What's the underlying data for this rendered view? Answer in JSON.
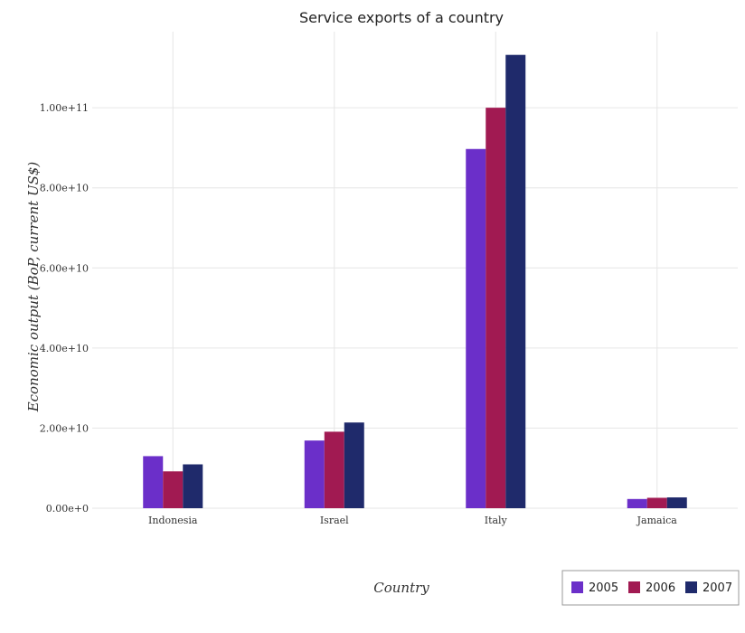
{
  "chart_data": {
    "type": "bar",
    "title": "Service exports of a country",
    "xlabel": "Country",
    "ylabel": "Economic output (BoP, current US$)",
    "categories": [
      "Indonesia",
      "Israel",
      "Italy",
      "Jamaica"
    ],
    "series": [
      {
        "name": "2005",
        "color": "#6b2fc9",
        "values": [
          13000000000.0,
          16900000000.0,
          89700000000.0,
          2300000000.0
        ]
      },
      {
        "name": "2006",
        "color": "#a11a52",
        "values": [
          9200000000.0,
          19100000000.0,
          100000000000.0,
          2600000000.0
        ]
      },
      {
        "name": "2007",
        "color": "#1f2a6b",
        "values": [
          10950000000.0,
          21400000000.0,
          113200000000.0,
          2700000000.0
        ]
      }
    ],
    "yticks": [
      "0.00e+0",
      "2.00e+10",
      "4.00e+10",
      "6.00e+10",
      "8.00e+10",
      "1.00e+11"
    ],
    "ytick_values": [
      0,
      20000000000.0,
      40000000000.0,
      60000000000.0,
      80000000000.0,
      100000000000.0
    ],
    "ylim": [
      0,
      119000000000.0
    ],
    "grid": true,
    "legend_position": "bottom-right"
  }
}
